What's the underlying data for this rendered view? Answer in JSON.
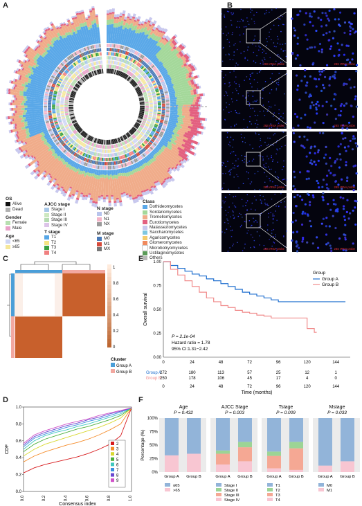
{
  "panels": {
    "a": "A",
    "b": "B",
    "c": "C",
    "d": "D",
    "e": "E",
    "f": "F"
  },
  "legend_a": {
    "os": {
      "title": "OS",
      "items": [
        {
          "label": "Alive",
          "color": "#111111"
        },
        {
          "label": "Dead",
          "color": "#b0b0b0"
        }
      ]
    },
    "gender": {
      "title": "Gender",
      "items": [
        {
          "label": "Female",
          "color": "#b7dfb0"
        },
        {
          "label": "Male",
          "color": "#e8a0c8"
        }
      ]
    },
    "age": {
      "title": "Age",
      "items": [
        {
          "label": "<65",
          "color": "#cfd6f5"
        },
        {
          "label": "≥65",
          "color": "#f5e79a"
        }
      ]
    },
    "ajcc": {
      "title": "AJCC stage",
      "items": [
        {
          "label": "Stage I",
          "color": "#a8c8e8"
        },
        {
          "label": "Stage II",
          "color": "#cce8c0"
        },
        {
          "label": "Stage III",
          "color": "#b6dcb2"
        },
        {
          "label": "Stage IV",
          "color": "#dcc4e8"
        }
      ]
    },
    "tstage": {
      "title": "T stage",
      "items": [
        {
          "label": "T1",
          "color": "#56a6e6"
        },
        {
          "label": "T2",
          "color": "#f5e483"
        },
        {
          "label": "T3",
          "color": "#3aa040"
        },
        {
          "label": "T4",
          "color": "#f08080"
        }
      ]
    },
    "nstage": {
      "title": "N stage",
      "items": [
        {
          "label": "N0",
          "color": "#b8c4ec"
        },
        {
          "label": "N1",
          "color": "#f4b4c8"
        },
        {
          "label": "NX",
          "color": "#9a9a9a"
        }
      ]
    },
    "mstage": {
      "title": "M stage",
      "items": [
        {
          "label": "M0",
          "color": "#4a7ab8"
        },
        {
          "label": "M1",
          "color": "#d64a3a"
        },
        {
          "label": "MX",
          "color": "#777777"
        }
      ]
    },
    "class": {
      "title": "Class",
      "items": [
        {
          "label": "Dothideomycetes",
          "color": "#5aa8e8"
        },
        {
          "label": "Sordariomycetes",
          "color": "#a4d89a"
        },
        {
          "label": "Tremellomycetes",
          "color": "#f0ac8a"
        },
        {
          "label": "Eurotiomycetes",
          "color": "#e36080"
        },
        {
          "label": "Malasseziomycetes",
          "color": "#c8c8ee"
        },
        {
          "label": "Saccharomycetes",
          "color": "#7ec7e0"
        },
        {
          "label": "Agaricomycetes",
          "color": "#f4cc6c"
        },
        {
          "label": "Glomeromycetes",
          "color": "#f08a5e"
        },
        {
          "label": "Microbotryomycetes",
          "color": "#ffffff"
        },
        {
          "label": "Ustilaginomycetes",
          "color": "#5a9a58"
        },
        {
          "label": "Others",
          "color": "#b8b8b8"
        }
      ]
    }
  },
  "panel_b": {
    "probe_label": "28S rRNA probe"
  },
  "panel_c": {
    "ticks": [
      "1",
      "0.8",
      "0.6",
      "0.4",
      "0.2",
      "0"
    ],
    "legend_title": "Cluster",
    "legend": [
      {
        "label": "Group A",
        "color": "#4a9ed8"
      },
      {
        "label": "Group B",
        "color": "#f2a8a0"
      }
    ]
  },
  "chart_data": [
    {
      "type": "line",
      "title": "",
      "xlabel": "Consensus index",
      "ylabel": "CDF",
      "xlim": [
        0,
        1
      ],
      "ylim": [
        0,
        1
      ],
      "xticks": [
        "0.0",
        "0.2",
        "0.4",
        "0.6",
        "0.8",
        "1.0"
      ],
      "yticks": [
        "0.0",
        "0.2",
        "0.4",
        "0.6",
        "0.8",
        "1.0"
      ],
      "x": [
        0,
        0.1,
        0.2,
        0.3,
        0.4,
        0.5,
        0.6,
        0.7,
        0.8,
        0.9,
        1.0
      ],
      "series": [
        {
          "name": "2",
          "color": "#d7191c",
          "values": [
            0.22,
            0.28,
            0.32,
            0.35,
            0.38,
            0.41,
            0.45,
            0.5,
            0.56,
            0.66,
            0.99
          ]
        },
        {
          "name": "3",
          "color": "#f58c2a",
          "values": [
            0.35,
            0.42,
            0.47,
            0.51,
            0.55,
            0.58,
            0.62,
            0.67,
            0.73,
            0.8,
            0.99
          ]
        },
        {
          "name": "4",
          "color": "#d8d830",
          "values": [
            0.42,
            0.5,
            0.56,
            0.6,
            0.64,
            0.68,
            0.72,
            0.76,
            0.81,
            0.87,
            0.99
          ]
        },
        {
          "name": "5",
          "color": "#4caf3c",
          "values": [
            0.47,
            0.56,
            0.62,
            0.66,
            0.7,
            0.74,
            0.77,
            0.81,
            0.85,
            0.9,
            0.99
          ]
        },
        {
          "name": "6",
          "color": "#40c8c0",
          "values": [
            0.5,
            0.6,
            0.66,
            0.7,
            0.73,
            0.77,
            0.8,
            0.84,
            0.88,
            0.92,
            0.99
          ]
        },
        {
          "name": "7",
          "color": "#3a8ee0",
          "values": [
            0.53,
            0.63,
            0.68,
            0.72,
            0.76,
            0.79,
            0.83,
            0.86,
            0.9,
            0.94,
            0.99
          ]
        },
        {
          "name": "8",
          "color": "#6a48d0",
          "values": [
            0.55,
            0.65,
            0.7,
            0.74,
            0.78,
            0.81,
            0.85,
            0.88,
            0.92,
            0.95,
            0.99
          ]
        },
        {
          "name": "9",
          "color": "#d050c8",
          "values": [
            0.57,
            0.67,
            0.72,
            0.76,
            0.8,
            0.83,
            0.86,
            0.9,
            0.93,
            0.96,
            0.99
          ]
        }
      ]
    },
    {
      "type": "line",
      "title": "",
      "xlabel": "Time (months)",
      "ylabel": "Overall survival",
      "xlim": [
        0,
        156
      ],
      "ylim": [
        0,
        1
      ],
      "xticks": [
        "0",
        "24",
        "48",
        "72",
        "96",
        "120",
        "144"
      ],
      "yticks": [
        "0.00",
        "0.25",
        "0.50",
        "0.75",
        "1.00"
      ],
      "legend_title": "Group",
      "annotations": [
        "P = 2.1e-04",
        "Hazard ratio = 1.78",
        "95% CI:1.31−2.42"
      ],
      "series": [
        {
          "name": "Group A",
          "color": "#1f6fcf",
          "x": [
            0,
            6,
            12,
            18,
            24,
            30,
            36,
            42,
            48,
            54,
            60,
            66,
            72,
            78,
            84,
            90,
            96,
            108,
            120,
            132,
            144,
            152
          ],
          "values": [
            1.0,
            0.96,
            0.93,
            0.9,
            0.87,
            0.85,
            0.82,
            0.8,
            0.77,
            0.74,
            0.71,
            0.68,
            0.66,
            0.64,
            0.62,
            0.6,
            0.58,
            0.58,
            0.58,
            0.58,
            0.58,
            0.58
          ]
        },
        {
          "name": "Group B",
          "color": "#f08a8a",
          "x": [
            0,
            6,
            12,
            18,
            24,
            30,
            36,
            42,
            48,
            54,
            60,
            66,
            72,
            78,
            84,
            90,
            96,
            108,
            118,
            120,
            126,
            128
          ],
          "values": [
            1.0,
            0.92,
            0.86,
            0.8,
            0.74,
            0.68,
            0.62,
            0.58,
            0.54,
            0.52,
            0.49,
            0.47,
            0.46,
            0.44,
            0.43,
            0.41,
            0.41,
            0.41,
            0.41,
            0.3,
            0.26,
            0.26
          ]
        }
      ],
      "risk_table": {
        "times": [
          "0",
          "24",
          "48",
          "72",
          "96",
          "120",
          "144"
        ],
        "rows": [
          {
            "name": "Group A",
            "values": [
              "272",
              "180",
              "113",
              "57",
              "25",
              "12",
              "1"
            ]
          },
          {
            "name": "Group B",
            "values": [
              "250",
              "178",
              "106",
              "45",
              "17",
              "4",
              "0"
            ]
          }
        ]
      }
    },
    {
      "type": "bar",
      "title": "Age",
      "subtitle": "P = 0.432",
      "categories": [
        "Group A",
        "Group B"
      ],
      "ylabel": "Percentage (%)",
      "yticks": [
        "0%",
        "25%",
        "50%",
        "75%",
        "100%"
      ],
      "series": [
        {
          "name": "≤65",
          "color": "#92b4d9",
          "values": [
            69,
            66
          ]
        },
        {
          "name": ">65",
          "color": "#f8c6d2",
          "values": [
            31,
            34
          ]
        }
      ]
    },
    {
      "type": "bar",
      "title": "AJCC Stage",
      "subtitle": "P = 0.003",
      "categories": [
        "Group A",
        "Group B"
      ],
      "series": [
        {
          "name": "Stage I",
          "color": "#92b4d9",
          "values": [
            60,
            44
          ]
        },
        {
          "name": "Stage II",
          "color": "#9cd495",
          "values": [
            6,
            10
          ]
        },
        {
          "name": "Stage III",
          "color": "#f5a894",
          "values": [
            20,
            26
          ]
        },
        {
          "name": "Stage IV",
          "color": "#f8c6d2",
          "values": [
            14,
            20
          ]
        }
      ]
    },
    {
      "type": "bar",
      "title": "Tstage",
      "subtitle": "P = 0.009",
      "categories": [
        "Group A",
        "Group B"
      ],
      "series": [
        {
          "name": "T1",
          "color": "#92b4d9",
          "values": [
            62,
            44
          ]
        },
        {
          "name": "T2",
          "color": "#9cd495",
          "values": [
            8,
            12
          ]
        },
        {
          "name": "T3",
          "color": "#f5a894",
          "values": [
            23,
            40
          ]
        },
        {
          "name": "T4",
          "color": "#f8c6d2",
          "values": [
            7,
            4
          ]
        }
      ]
    },
    {
      "type": "bar",
      "title": "Mstage",
      "subtitle": "P = 0.033",
      "categories": [
        "Group A",
        "Group B"
      ],
      "series": [
        {
          "name": "M0",
          "color": "#92b4d9",
          "values": [
            88,
            80
          ]
        },
        {
          "name": "M1",
          "color": "#f8c6d2",
          "values": [
            12,
            20
          ]
        }
      ]
    }
  ]
}
